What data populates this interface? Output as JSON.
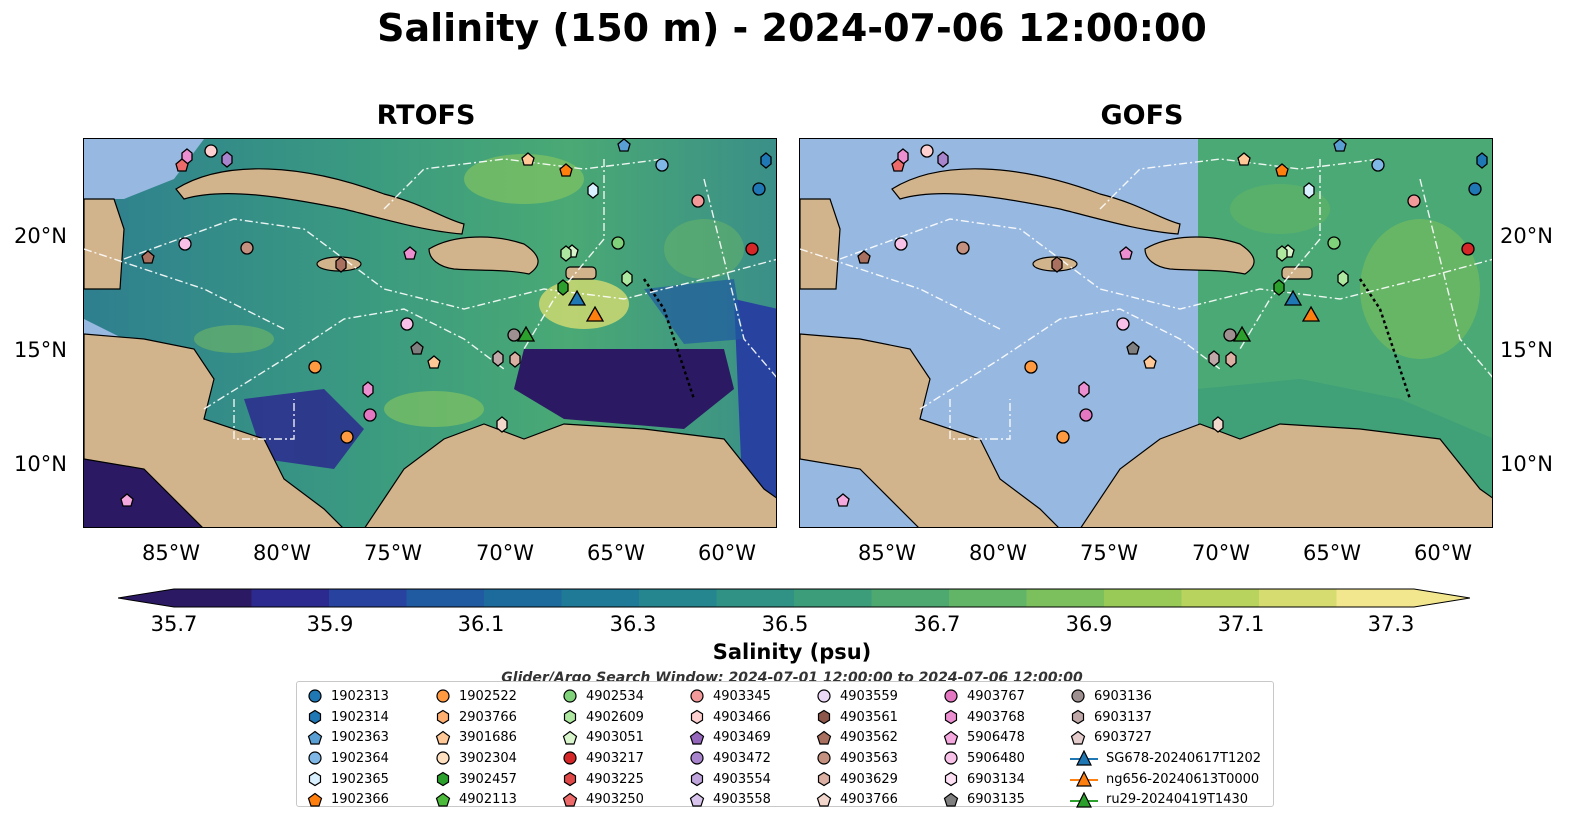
{
  "title": "Salinity (150 m) - 2024-07-06 12:00:00",
  "panels": [
    {
      "title": "RTOFS"
    },
    {
      "title": "GOFS"
    }
  ],
  "lat_ticks": [
    "20°N",
    "15°N",
    "10°N"
  ],
  "lon_ticks": [
    "85°W",
    "80°W",
    "75°W",
    "70°W",
    "65°W",
    "60°W"
  ],
  "colorbar": {
    "label": "Salinity (psu)",
    "ticks": [
      "35.7",
      "35.9",
      "36.1",
      "36.3",
      "36.5",
      "36.7",
      "36.9",
      "37.1",
      "37.3"
    ],
    "min": 35.7,
    "max": 37.3,
    "colors": [
      "#2b1a63",
      "#2c2a8e",
      "#27439f",
      "#205aa1",
      "#1d6b9d",
      "#1f7a98",
      "#25868f",
      "#2f9285",
      "#3c9d7b",
      "#4da970",
      "#62b566",
      "#7cc05d",
      "#99ca58",
      "#b8d35e",
      "#d6dc70",
      "#f2e68e"
    ]
  },
  "search_window": "Glider/Argo Search Window: 2024-07-01 12:00:00 to 2024-07-06 12:00:00",
  "legend": [
    {
      "label": "1902313",
      "shape": "circle",
      "color": "#1f77b4"
    },
    {
      "label": "1902314",
      "shape": "hexagon",
      "color": "#1f77b4"
    },
    {
      "label": "1902363",
      "shape": "pentagon",
      "color": "#5a9fd4"
    },
    {
      "label": "1902364",
      "shape": "circle",
      "color": "#7fb8e6"
    },
    {
      "label": "1902365",
      "shape": "hexagon",
      "color": "#d8f0ff"
    },
    {
      "label": "1902366",
      "shape": "pentagon",
      "color": "#ff7f0e"
    },
    {
      "label": "1902522",
      "shape": "circle",
      "color": "#ff9a40"
    },
    {
      "label": "2903766",
      "shape": "hexagon",
      "color": "#ffb070"
    },
    {
      "label": "3901686",
      "shape": "pentagon",
      "color": "#ffc896"
    },
    {
      "label": "3902304",
      "shape": "circle",
      "color": "#ffe0c0"
    },
    {
      "label": "3902457",
      "shape": "hexagon",
      "color": "#2ca02c"
    },
    {
      "label": "4902113",
      "shape": "pentagon",
      "color": "#4cbb3c"
    },
    {
      "label": "4902534",
      "shape": "circle",
      "color": "#7fd17a"
    },
    {
      "label": "4902609",
      "shape": "hexagon",
      "color": "#aee8a0"
    },
    {
      "label": "4903051",
      "shape": "pentagon",
      "color": "#d8f5cc"
    },
    {
      "label": "4903217",
      "shape": "circle",
      "color": "#d62728"
    },
    {
      "label": "4903225",
      "shape": "hexagon",
      "color": "#e04848"
    },
    {
      "label": "4903250",
      "shape": "pentagon",
      "color": "#ec6a6a"
    },
    {
      "label": "4903345",
      "shape": "circle",
      "color": "#f29a9a"
    },
    {
      "label": "4903466",
      "shape": "hexagon",
      "color": "#ffd0d0"
    },
    {
      "label": "4903469",
      "shape": "pentagon",
      "color": "#9467bd"
    },
    {
      "label": "4903472",
      "shape": "circle",
      "color": "#a884cc"
    },
    {
      "label": "4903554",
      "shape": "hexagon",
      "color": "#c0a4dc"
    },
    {
      "label": "4903558",
      "shape": "pentagon",
      "color": "#d8c4ec"
    },
    {
      "label": "4903559",
      "shape": "circle",
      "color": "#ead8f6"
    },
    {
      "label": "4903561",
      "shape": "hexagon",
      "color": "#8c564b"
    },
    {
      "label": "4903562",
      "shape": "pentagon",
      "color": "#a97060"
    },
    {
      "label": "4903563",
      "shape": "circle",
      "color": "#c49080"
    },
    {
      "label": "4903629",
      "shape": "hexagon",
      "color": "#dbb0a2"
    },
    {
      "label": "4903766",
      "shape": "pentagon",
      "color": "#f3d6cc"
    },
    {
      "label": "4903767",
      "shape": "circle",
      "color": "#e377c2"
    },
    {
      "label": "4903768",
      "shape": "hexagon",
      "color": "#ec8fd0"
    },
    {
      "label": "5906478",
      "shape": "pentagon",
      "color": "#f4a8de"
    },
    {
      "label": "5906480",
      "shape": "circle",
      "color": "#f8c2e8"
    },
    {
      "label": "6903134",
      "shape": "hexagon",
      "color": "#fde0f4"
    },
    {
      "label": "6903135",
      "shape": "pentagon",
      "color": "#7f7f7f"
    },
    {
      "label": "6903136",
      "shape": "circle",
      "color": "#9e9090"
    },
    {
      "label": "6903137",
      "shape": "hexagon",
      "color": "#c0a8a8"
    },
    {
      "label": "6903727",
      "shape": "pentagon",
      "color": "#e4cccc"
    },
    {
      "label": "SG678-20240617T1202",
      "shape": "glider",
      "color": "#1f77b4"
    },
    {
      "label": "ng656-20240613T0000",
      "shape": "glider",
      "color": "#ff7f0e"
    },
    {
      "label": "ru29-20240419T1430",
      "shape": "glider",
      "color": "#2ca02c"
    }
  ]
}
